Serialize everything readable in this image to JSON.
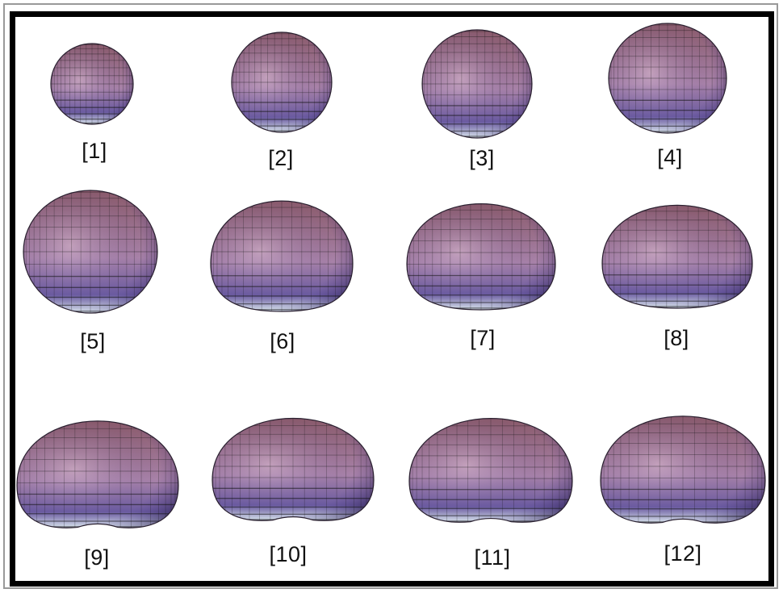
{
  "panels": [
    {
      "label": "[1]",
      "shape": "sphere"
    },
    {
      "label": "[2]",
      "shape": "sphere"
    },
    {
      "label": "[3]",
      "shape": "sphere"
    },
    {
      "label": "[4]",
      "shape": "sphere"
    },
    {
      "label": "[5]",
      "shape": "sphere"
    },
    {
      "label": "[6]",
      "shape": "flattened-base"
    },
    {
      "label": "[7]",
      "shape": "flattened-base"
    },
    {
      "label": "[8]",
      "shape": "flattened-base"
    },
    {
      "label": "[9]",
      "shape": "kidney"
    },
    {
      "label": "[10]",
      "shape": "kidney"
    },
    {
      "label": "[11]",
      "shape": "kidney"
    },
    {
      "label": "[12]",
      "shape": "kidney"
    }
  ],
  "colors": {
    "surface_top": "#8a5a6a",
    "surface_mid": "#a882a8",
    "surface_side": "#6a5aa0",
    "surface_bottom": "#d8e4ec",
    "mesh": "#141414",
    "frame": "#000000"
  }
}
